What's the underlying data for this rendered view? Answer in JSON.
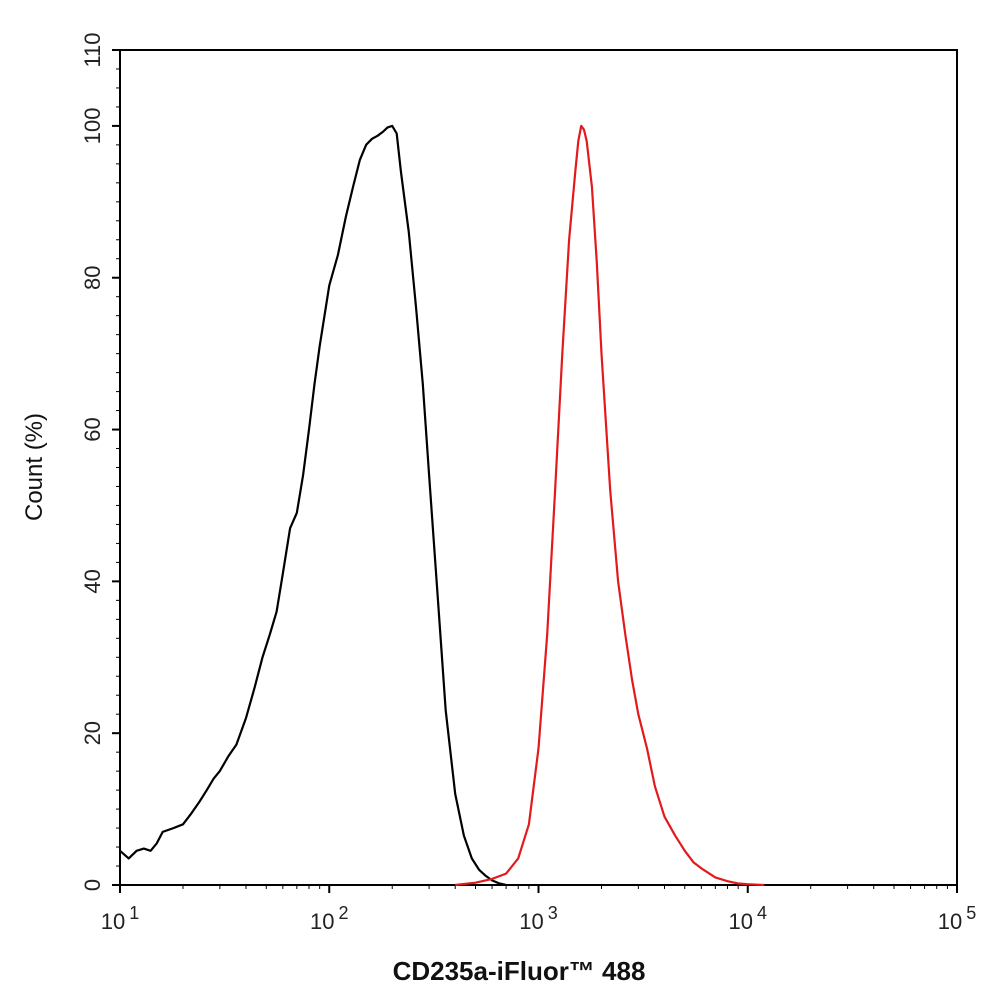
{
  "chart_data": {
    "type": "line",
    "xlabel": "CD235a-iFluor™ 488",
    "ylabel": "Count  (%)",
    "x_scale": "log",
    "xlim": [
      10,
      100000
    ],
    "ylim": [
      0,
      110
    ],
    "x_ticks": [
      {
        "base": "10",
        "exp": "1",
        "value": 10
      },
      {
        "base": "10",
        "exp": "2",
        "value": 100
      },
      {
        "base": "10",
        "exp": "3",
        "value": 1000
      },
      {
        "base": "10",
        "exp": "4",
        "value": 10000
      },
      {
        "base": "10",
        "exp": "5",
        "value": 100000
      }
    ],
    "y_ticks": [
      0,
      20,
      40,
      60,
      80,
      100,
      110
    ],
    "grid": false,
    "legend": "none",
    "series": [
      {
        "color": "#000000",
        "x": [
          10,
          11,
          12,
          13,
          14,
          15,
          16,
          18,
          20,
          22,
          24,
          26,
          28,
          30,
          33,
          36,
          40,
          44,
          48,
          52,
          56,
          60,
          65,
          70,
          75,
          80,
          85,
          90,
          100,
          110,
          120,
          130,
          140,
          150,
          160,
          170,
          180,
          190,
          200,
          210,
          220,
          240,
          260,
          280,
          300,
          330,
          360,
          400,
          440,
          480,
          520,
          560,
          600,
          650,
          700
        ],
        "y": [
          4.5,
          3.5,
          4.5,
          4.8,
          4.5,
          5.5,
          7,
          7.5,
          8,
          9.5,
          11,
          12.5,
          14,
          15,
          17,
          18.5,
          22,
          26,
          30,
          33,
          36,
          41,
          47,
          49,
          54,
          60,
          66,
          71,
          79,
          83,
          88,
          92,
          95.5,
          97.5,
          98.3,
          98.7,
          99.2,
          99.8,
          100,
          99,
          94,
          86,
          76,
          66,
          54,
          38,
          23,
          12,
          6.5,
          3.5,
          2,
          1.2,
          0.6,
          0.2,
          0
        ]
      },
      {
        "color": "#e31a1c",
        "x": [
          400,
          500,
          600,
          700,
          800,
          900,
          1000,
          1100,
          1200,
          1300,
          1400,
          1500,
          1550,
          1600,
          1650,
          1700,
          1800,
          1900,
          2000,
          2200,
          2400,
          2600,
          2800,
          3000,
          3300,
          3600,
          4000,
          4500,
          5000,
          5500,
          6000,
          7000,
          8000,
          9000,
          10000,
          12000
        ],
        "y": [
          0,
          0.3,
          0.8,
          1.5,
          3.5,
          8,
          18,
          33,
          52,
          70,
          85,
          94,
          98,
          100,
          99.5,
          98,
          92,
          82,
          70,
          52,
          40,
          33,
          27,
          22.5,
          18,
          13,
          9,
          6.5,
          4.5,
          3,
          2.2,
          1,
          0.5,
          0.2,
          0.1,
          0
        ]
      }
    ]
  }
}
